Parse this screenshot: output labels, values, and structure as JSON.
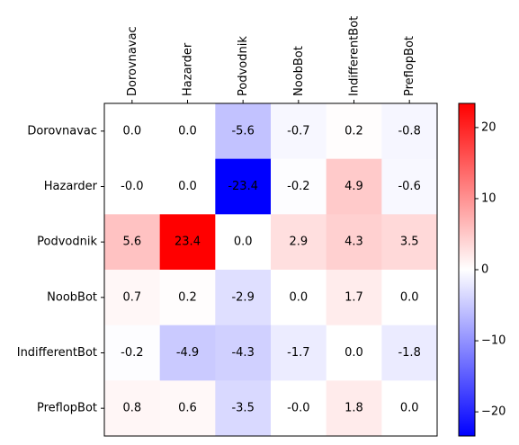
{
  "chart_data": {
    "type": "heatmap",
    "title": "",
    "xlabel": "",
    "ylabel": "",
    "x_categories": [
      "Dorovnavac",
      "Hazarder",
      "Podvodnik",
      "NoobBot",
      "IndifferentBot",
      "PreflopBot"
    ],
    "y_categories": [
      "Dorovnavac",
      "Hazarder",
      "Podvodnik",
      "NoobBot",
      "IndifferentBot",
      "PreflopBot"
    ],
    "values": [
      [
        0.0,
        0.0,
        -5.6,
        -0.7,
        0.2,
        -0.8
      ],
      [
        -0.0,
        0.0,
        -23.4,
        -0.2,
        4.9,
        -0.6
      ],
      [
        5.6,
        23.4,
        0.0,
        2.9,
        4.3,
        3.5
      ],
      [
        0.7,
        0.2,
        -2.9,
        0.0,
        1.7,
        0.0
      ],
      [
        -0.2,
        -4.9,
        -4.3,
        -1.7,
        0.0,
        -1.8
      ],
      [
        0.8,
        0.6,
        -3.5,
        -0.0,
        1.8,
        0.0
      ]
    ],
    "cell_labels": [
      [
        "0.0",
        "0.0",
        "-5.6",
        "-0.7",
        "0.2",
        "-0.8"
      ],
      [
        "-0.0",
        "0.0",
        "-23.4",
        "-0.2",
        "4.9",
        "-0.6"
      ],
      [
        "5.6",
        "23.4",
        "0.0",
        "2.9",
        "4.3",
        "3.5"
      ],
      [
        "0.7",
        "0.2",
        "-2.9",
        "0.0",
        "1.7",
        "0.0"
      ],
      [
        "-0.2",
        "-4.9",
        "-4.3",
        "-1.7",
        "0.0",
        "-1.8"
      ],
      [
        "0.8",
        "0.6",
        "-3.5",
        "-0.0",
        "1.8",
        "0.0"
      ]
    ],
    "colormap": "bwr",
    "color_low": "#0000ff",
    "color_mid": "#ffffff",
    "color_high": "#ff0000",
    "vmin": -23.4,
    "vmax": 23.4,
    "colorbar_ticks": [
      -20,
      -10,
      0,
      10,
      20
    ],
    "colorbar_tick_labels": [
      "−20",
      "−10",
      "0",
      "10",
      "20"
    ],
    "x_tick_position": "top",
    "grid": false
  }
}
